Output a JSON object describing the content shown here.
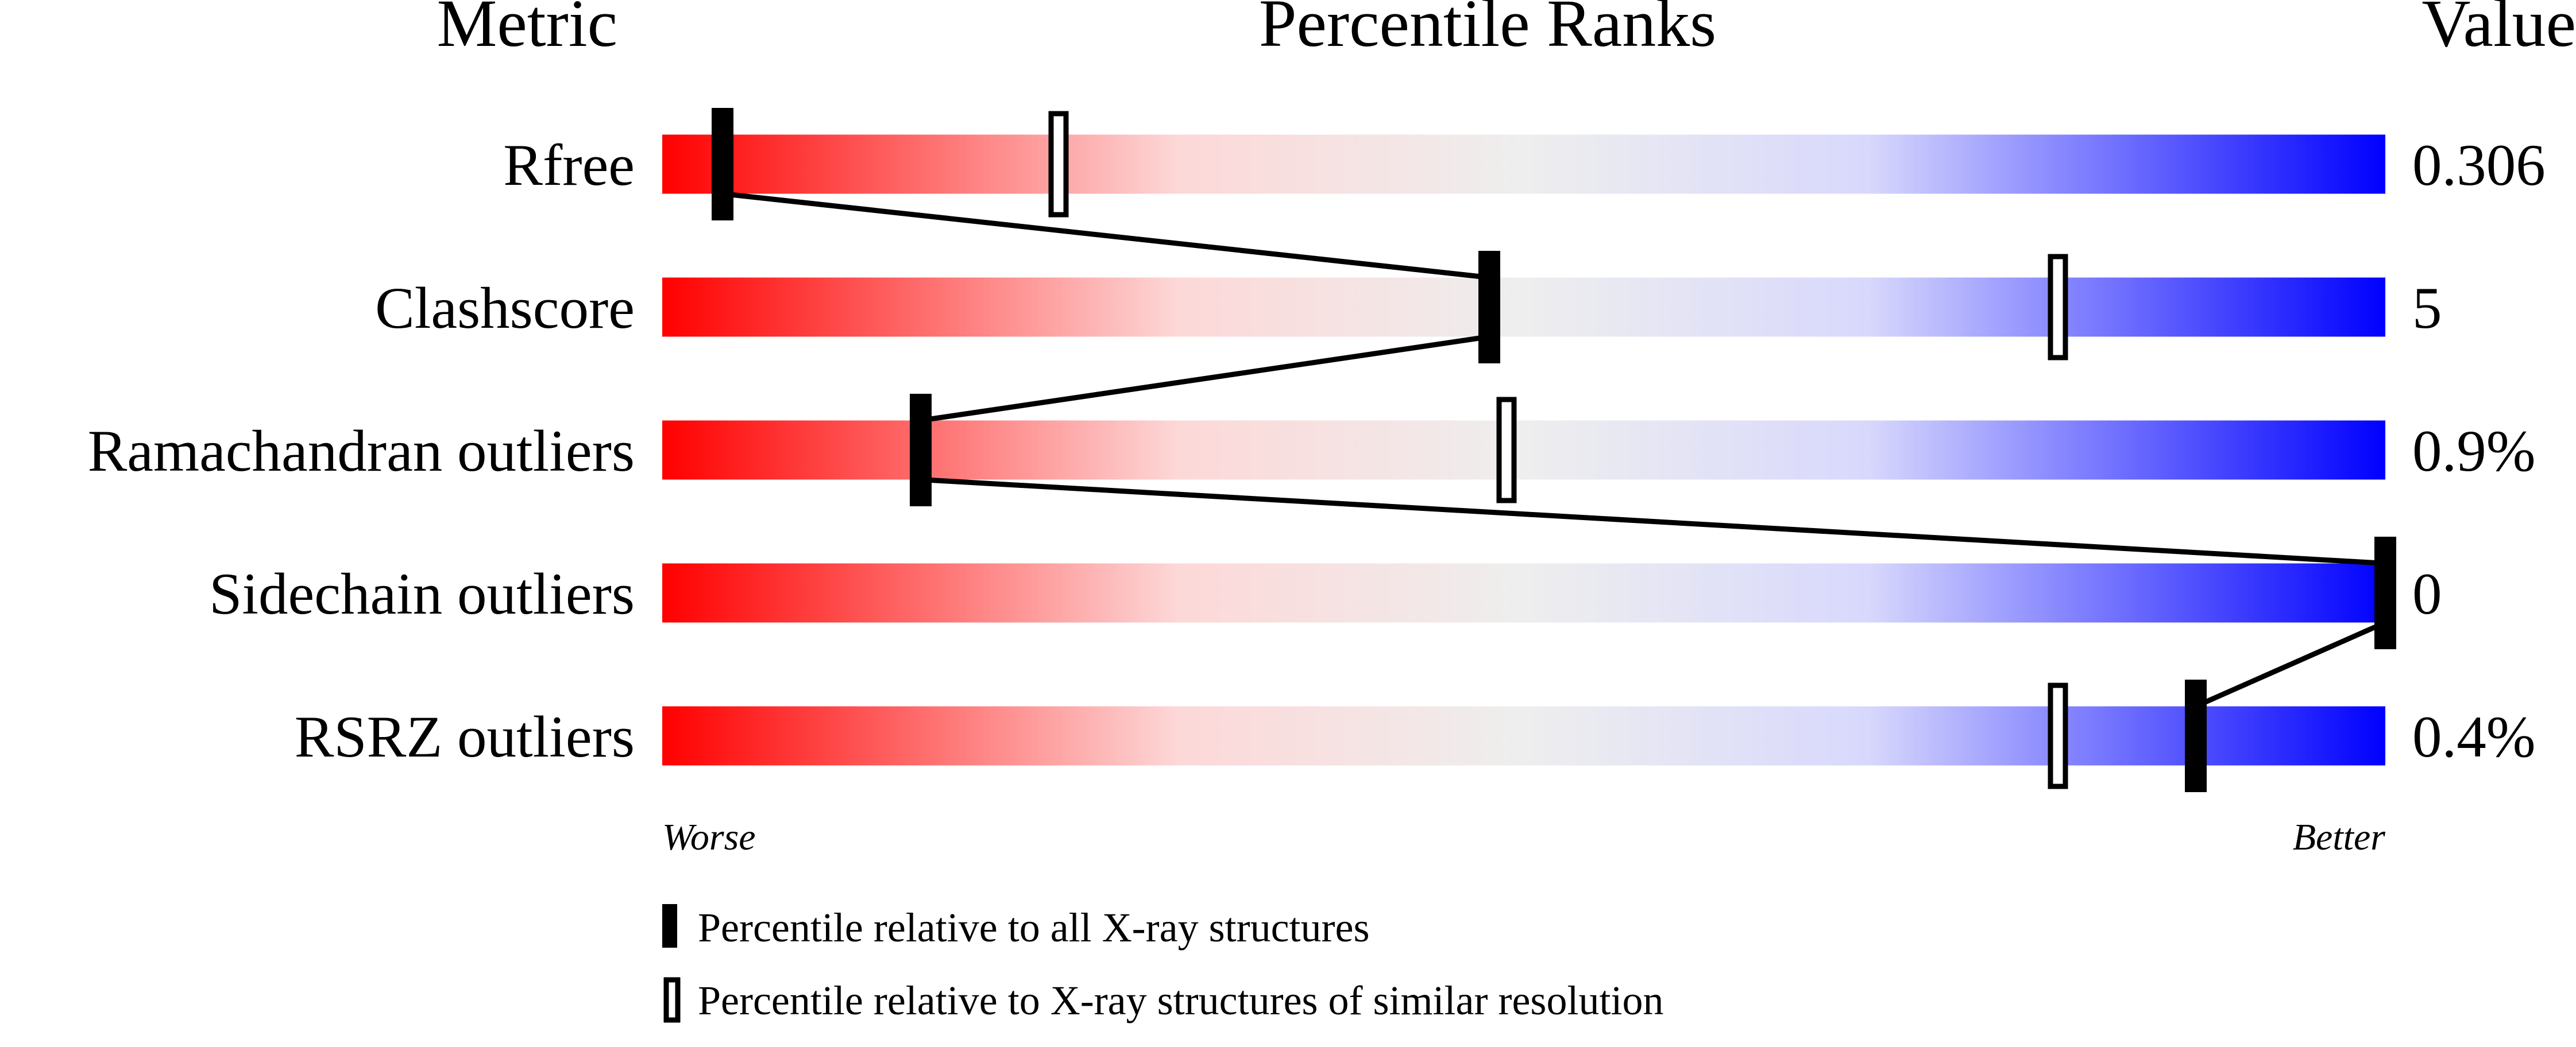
{
  "chart_data": {
    "type": "percentile-slider",
    "headers": {
      "metric": "Metric",
      "ranks": "Percentile Ranks",
      "value": "Value"
    },
    "xlim": [
      0,
      100
    ],
    "gradient": [
      "#ff0000",
      "#fdd8d8",
      "#eeeeee",
      "#d8d8fd",
      "#0000ff"
    ],
    "metrics": [
      {
        "name": "Rfree",
        "value": "0.306",
        "percentile_all": 3.5,
        "percentile_similar": 23
      },
      {
        "name": "Clashscore",
        "value": "5",
        "percentile_all": 48,
        "percentile_similar": 81
      },
      {
        "name": "Ramachandran outliers",
        "value": "0.9%",
        "percentile_all": 15,
        "percentile_similar": 49
      },
      {
        "name": "Sidechain outliers",
        "value": "0",
        "percentile_all": 100,
        "percentile_similar": 100
      },
      {
        "name": "RSRZ outliers",
        "value": "0.4%",
        "percentile_all": 89,
        "percentile_similar": 81
      }
    ],
    "axis_labels": {
      "left": "Worse",
      "right": "Better"
    },
    "legend": {
      "all": "Percentile relative to all X-ray structures",
      "similar": "Percentile relative to X-ray structures of similar resolution"
    }
  }
}
